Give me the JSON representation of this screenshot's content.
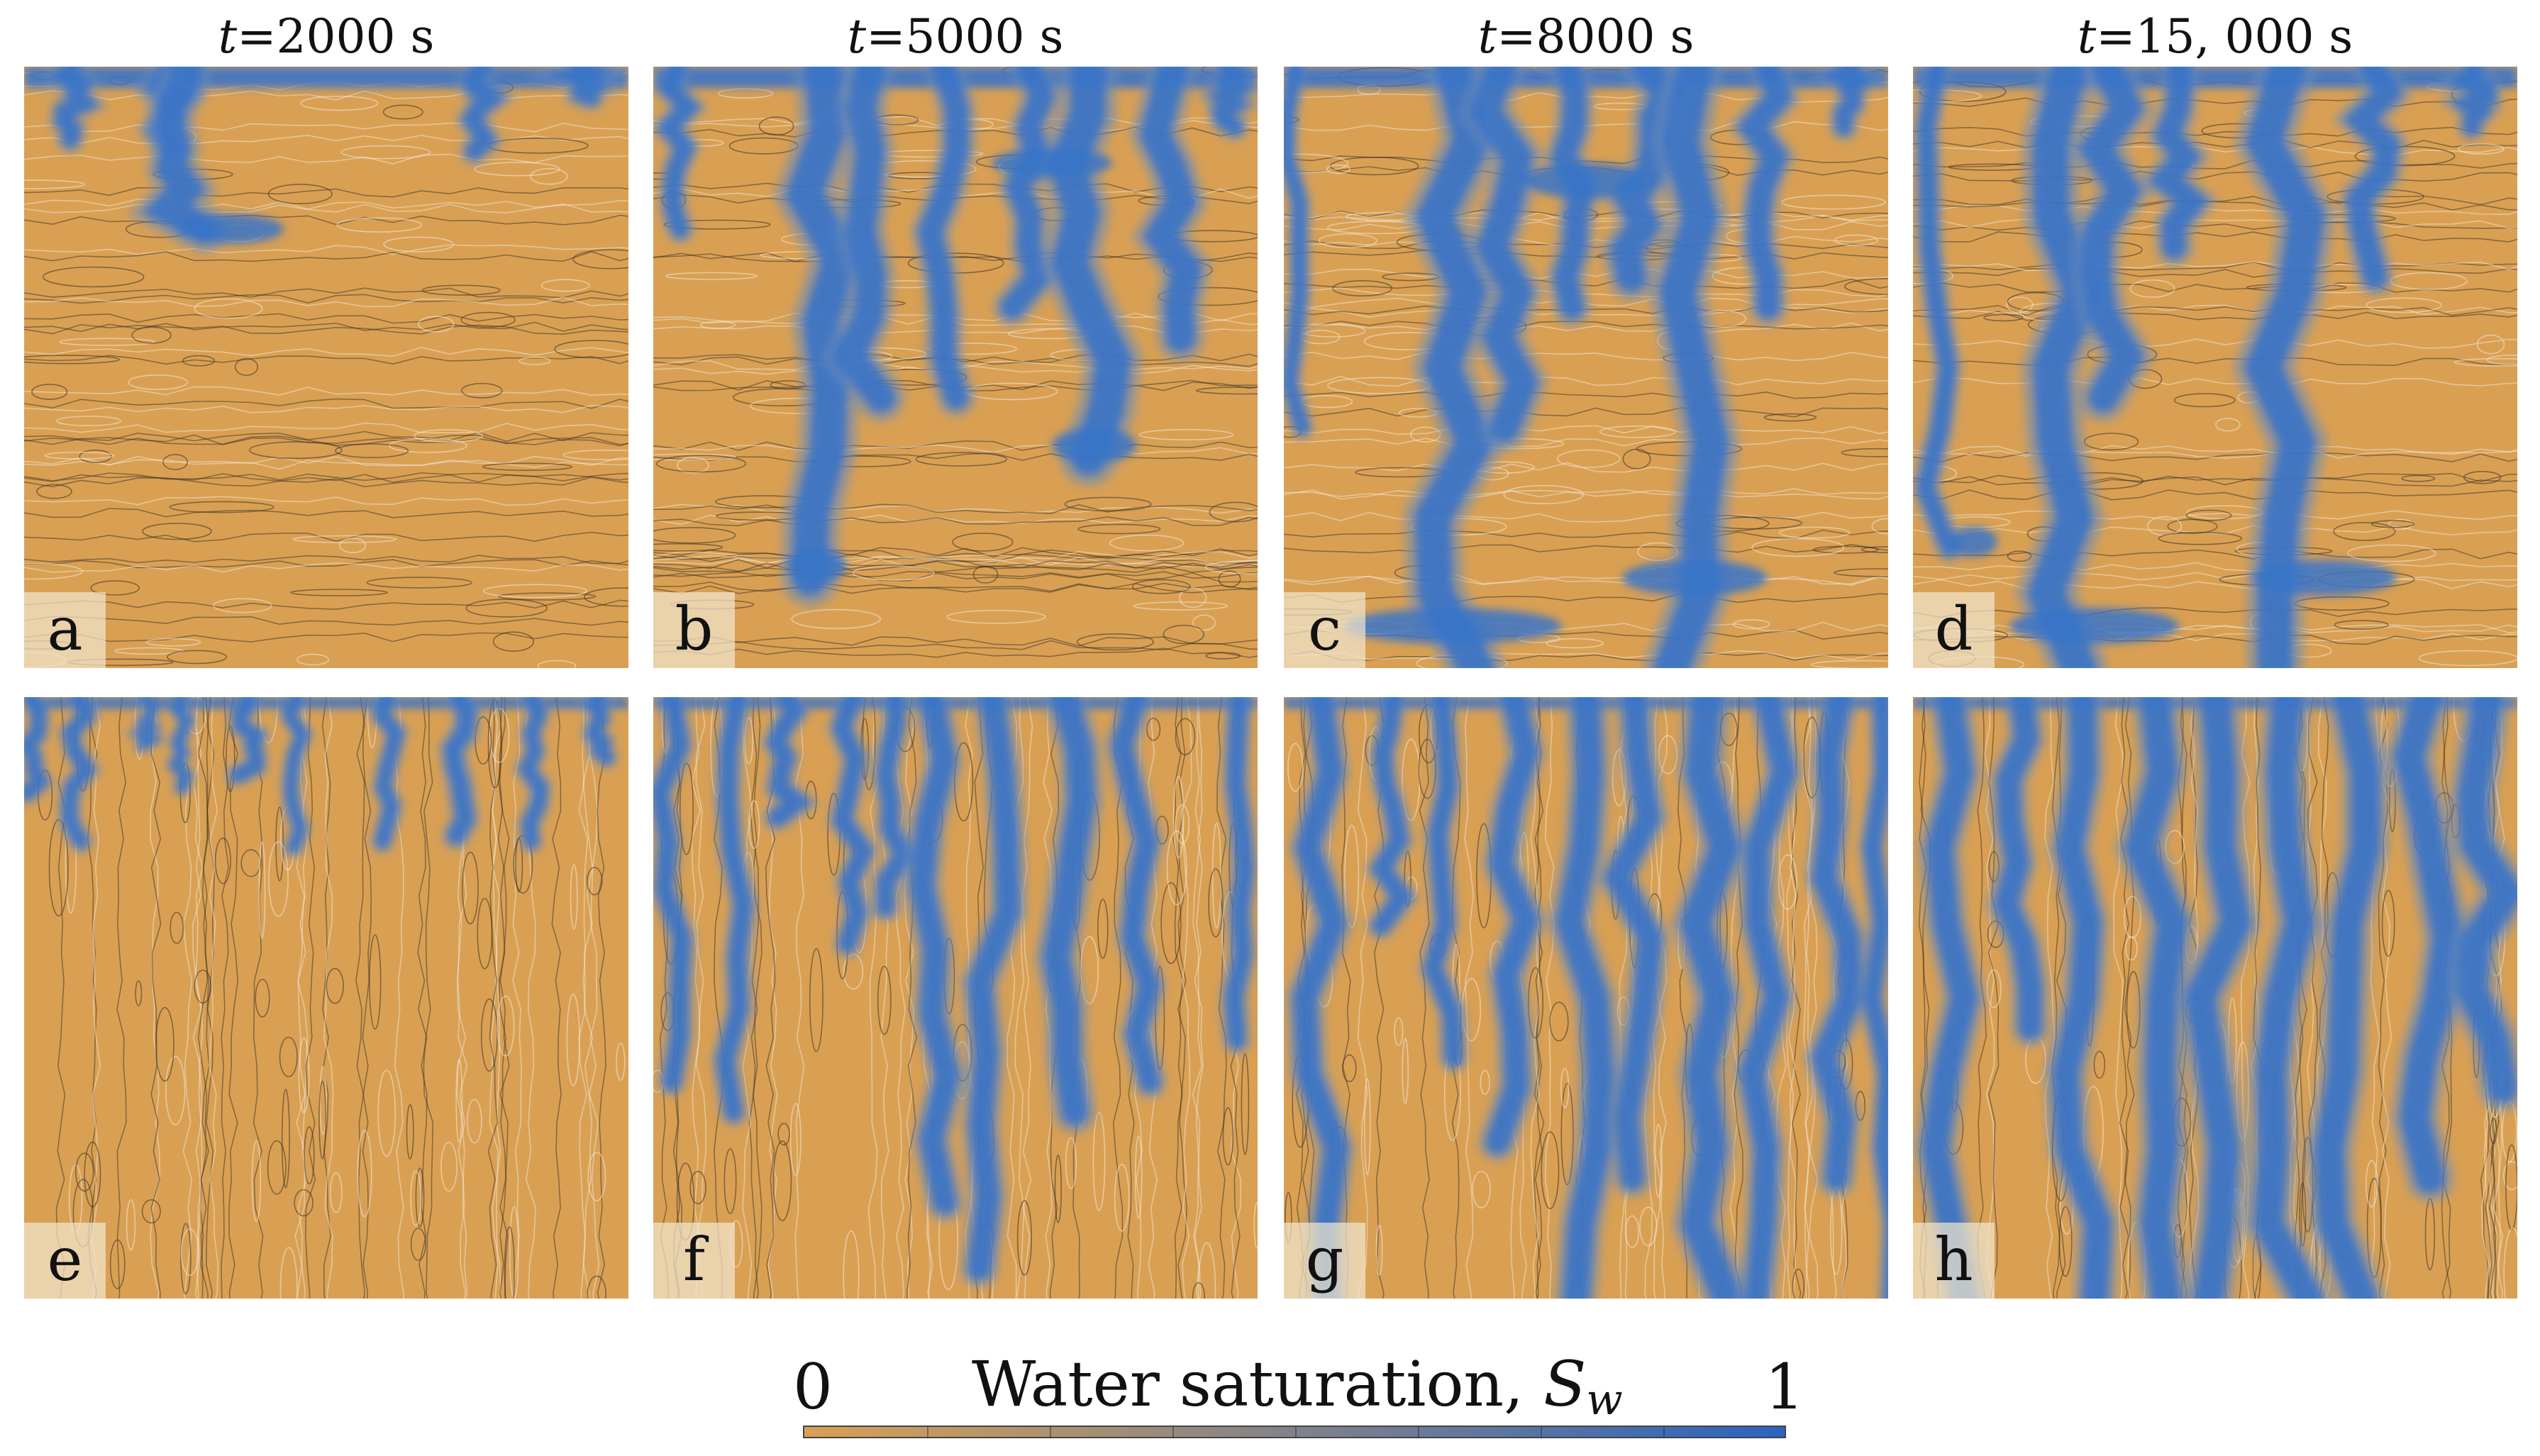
{
  "columns": [
    {
      "time_var": "t",
      "eq": "=",
      "time_value": "2000",
      "unit": " s"
    },
    {
      "time_var": "t",
      "eq": "=",
      "time_value": "5000",
      "unit": " s"
    },
    {
      "time_var": "t",
      "eq": "=",
      "time_value": "8000",
      "unit": " s"
    },
    {
      "time_var": "t",
      "eq": "=",
      "time_value": "15, 000",
      "unit": " s"
    }
  ],
  "panels": [
    "a",
    "b",
    "c",
    "d",
    "e",
    "f",
    "g",
    "h"
  ],
  "colorbar": {
    "min_label": "0",
    "max_label": "1",
    "title_text": "Water saturation, ",
    "title_symbol": "S",
    "title_subscript": "w",
    "low_color": "#d9a054",
    "high_color": "#2a64c0"
  },
  "colors": {
    "dry": "#d9a054",
    "water": "#3a74c8",
    "water_edge": "#6b8db8",
    "contour_dark": "#3a3226",
    "contour_light": "#f2ead8"
  }
}
